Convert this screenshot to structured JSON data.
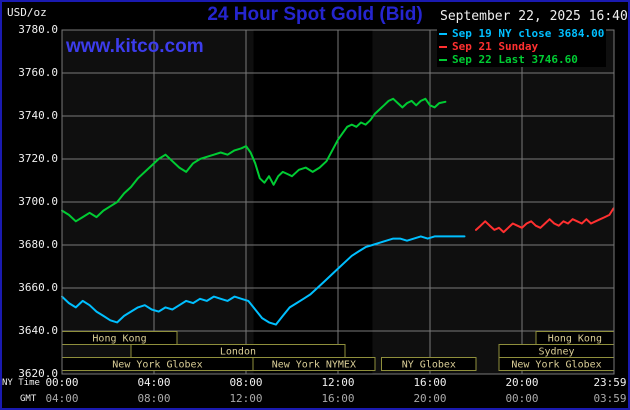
{
  "header": {
    "unit_label": "USD/oz",
    "title": "24 Hour Spot Gold (Bid)",
    "datetime": "September 22, 2025 16:40",
    "watermark": "www.kitco.com"
  },
  "legend": {
    "items": [
      {
        "label": "Sep 19 NY close 3684.00",
        "color": "#00bfff"
      },
      {
        "label": "Sep 21 Sunday",
        "color": "#ff3030"
      },
      {
        "label": "Sep 22 Last 3746.60",
        "color": "#00cc33"
      }
    ]
  },
  "axes": {
    "ny_label": "NY Time",
    "gmt_label": "GMT",
    "tick_hours": [
      0,
      4,
      8,
      12,
      16,
      20,
      24
    ],
    "ny_ticks": [
      "00:00",
      "04:00",
      "08:00",
      "12:00",
      "16:00",
      "20:00",
      "23:59"
    ],
    "gmt_ticks": [
      "04:00",
      "08:00",
      "12:00",
      "16:00",
      "20:00",
      "00:00",
      "03:59"
    ],
    "y_tick_labels": [
      "3780.0",
      "3760.0",
      "3740.0",
      "3720.0",
      "3700.0",
      "3680.0",
      "3660.0",
      "3640.0",
      "3620.0"
    ],
    "y_tick_values": [
      3780,
      3760,
      3740,
      3720,
      3700,
      3680,
      3660,
      3640,
      3620
    ]
  },
  "chart_data": {
    "type": "line",
    "title": "24 Hour Spot Gold (Bid)",
    "xlabel": "NY Time (hours)",
    "ylabel": "USD/oz",
    "xlim": [
      0,
      24
    ],
    "ylim": [
      3620,
      3780
    ],
    "grid": true,
    "legend_position": "top-right",
    "nymex_band": {
      "start": 8.33,
      "end": 13.5
    },
    "series": [
      {
        "name": "Sep 19 NY close",
        "color": "#00bfff",
        "final_value": 3684.0,
        "points": [
          [
            0,
            3656
          ],
          [
            0.3,
            3653
          ],
          [
            0.6,
            3651
          ],
          [
            0.9,
            3654
          ],
          [
            1.2,
            3652
          ],
          [
            1.5,
            3649
          ],
          [
            1.8,
            3647
          ],
          [
            2.1,
            3645
          ],
          [
            2.4,
            3644
          ],
          [
            2.7,
            3647
          ],
          [
            3,
            3649
          ],
          [
            3.3,
            3651
          ],
          [
            3.6,
            3652
          ],
          [
            3.9,
            3650
          ],
          [
            4.2,
            3649
          ],
          [
            4.5,
            3651
          ],
          [
            4.8,
            3650
          ],
          [
            5.1,
            3652
          ],
          [
            5.4,
            3654
          ],
          [
            5.7,
            3653
          ],
          [
            6,
            3655
          ],
          [
            6.3,
            3654
          ],
          [
            6.6,
            3656
          ],
          [
            6.9,
            3655
          ],
          [
            7.2,
            3654
          ],
          [
            7.5,
            3656
          ],
          [
            7.8,
            3655
          ],
          [
            8.1,
            3654
          ],
          [
            8.4,
            3650
          ],
          [
            8.7,
            3646
          ],
          [
            9,
            3644
          ],
          [
            9.3,
            3643
          ],
          [
            9.6,
            3647
          ],
          [
            9.9,
            3651
          ],
          [
            10.2,
            3653
          ],
          [
            10.5,
            3655
          ],
          [
            10.8,
            3657
          ],
          [
            11.1,
            3660
          ],
          [
            11.4,
            3663
          ],
          [
            11.7,
            3666
          ],
          [
            12,
            3669
          ],
          [
            12.3,
            3672
          ],
          [
            12.6,
            3675
          ],
          [
            12.9,
            3677
          ],
          [
            13.2,
            3679
          ],
          [
            13.5,
            3680
          ],
          [
            13.8,
            3681
          ],
          [
            14.1,
            3682
          ],
          [
            14.4,
            3683
          ],
          [
            14.7,
            3683
          ],
          [
            15,
            3682
          ],
          [
            15.3,
            3683
          ],
          [
            15.6,
            3684
          ],
          [
            15.9,
            3683
          ],
          [
            16.2,
            3684
          ],
          [
            16.5,
            3684
          ],
          [
            16.8,
            3684
          ],
          [
            17.1,
            3684
          ],
          [
            17.5,
            3684
          ]
        ]
      },
      {
        "name": "Sep 21 Sunday",
        "color": "#ff3030",
        "points": [
          [
            18,
            3687
          ],
          [
            18.2,
            3689
          ],
          [
            18.4,
            3691
          ],
          [
            18.6,
            3689
          ],
          [
            18.8,
            3687
          ],
          [
            19,
            3688
          ],
          [
            19.2,
            3686
          ],
          [
            19.4,
            3688
          ],
          [
            19.6,
            3690
          ],
          [
            19.8,
            3689
          ],
          [
            20,
            3688
          ],
          [
            20.2,
            3690
          ],
          [
            20.4,
            3691
          ],
          [
            20.6,
            3689
          ],
          [
            20.8,
            3688
          ],
          [
            21,
            3690
          ],
          [
            21.2,
            3692
          ],
          [
            21.4,
            3690
          ],
          [
            21.6,
            3689
          ],
          [
            21.8,
            3691
          ],
          [
            22,
            3690
          ],
          [
            22.2,
            3692
          ],
          [
            22.4,
            3691
          ],
          [
            22.6,
            3690
          ],
          [
            22.8,
            3692
          ],
          [
            23,
            3690
          ],
          [
            23.2,
            3691
          ],
          [
            23.4,
            3692
          ],
          [
            23.6,
            3693
          ],
          [
            23.8,
            3694
          ],
          [
            23.98,
            3697
          ]
        ]
      },
      {
        "name": "Sep 22",
        "color": "#00cc33",
        "last_value": 3746.6,
        "points": [
          [
            0,
            3696
          ],
          [
            0.3,
            3694
          ],
          [
            0.6,
            3691
          ],
          [
            0.9,
            3693
          ],
          [
            1.2,
            3695
          ],
          [
            1.5,
            3693
          ],
          [
            1.8,
            3696
          ],
          [
            2.1,
            3698
          ],
          [
            2.4,
            3700
          ],
          [
            2.7,
            3704
          ],
          [
            3,
            3707
          ],
          [
            3.3,
            3711
          ],
          [
            3.6,
            3714
          ],
          [
            3.9,
            3717
          ],
          [
            4.2,
            3720
          ],
          [
            4.5,
            3722
          ],
          [
            4.8,
            3719
          ],
          [
            5.1,
            3716
          ],
          [
            5.4,
            3714
          ],
          [
            5.7,
            3718
          ],
          [
            6,
            3720
          ],
          [
            6.3,
            3721
          ],
          [
            6.6,
            3722
          ],
          [
            6.9,
            3723
          ],
          [
            7.2,
            3722
          ],
          [
            7.5,
            3724
          ],
          [
            7.8,
            3725
          ],
          [
            8,
            3726
          ],
          [
            8.2,
            3723
          ],
          [
            8.4,
            3718
          ],
          [
            8.6,
            3711
          ],
          [
            8.8,
            3709
          ],
          [
            9,
            3712
          ],
          [
            9.2,
            3708
          ],
          [
            9.4,
            3712
          ],
          [
            9.6,
            3714
          ],
          [
            9.8,
            3713
          ],
          [
            10,
            3712
          ],
          [
            10.3,
            3715
          ],
          [
            10.6,
            3716
          ],
          [
            10.9,
            3714
          ],
          [
            11.2,
            3716
          ],
          [
            11.5,
            3719
          ],
          [
            11.8,
            3725
          ],
          [
            12,
            3729
          ],
          [
            12.2,
            3732
          ],
          [
            12.4,
            3735
          ],
          [
            12.6,
            3736
          ],
          [
            12.8,
            3735
          ],
          [
            13,
            3737
          ],
          [
            13.2,
            3736
          ],
          [
            13.4,
            3738
          ],
          [
            13.6,
            3741
          ],
          [
            13.8,
            3743
          ],
          [
            14,
            3745
          ],
          [
            14.2,
            3747
          ],
          [
            14.4,
            3748
          ],
          [
            14.6,
            3746
          ],
          [
            14.8,
            3744
          ],
          [
            15,
            3746
          ],
          [
            15.2,
            3747
          ],
          [
            15.4,
            3745
          ],
          [
            15.6,
            3747
          ],
          [
            15.8,
            3748
          ],
          [
            16,
            3745
          ],
          [
            16.2,
            3744
          ],
          [
            16.4,
            3746
          ],
          [
            16.67,
            3746.6
          ]
        ]
      }
    ],
    "sessions": [
      {
        "row": 0,
        "label": "Hong Kong",
        "start": 0,
        "end": 5
      },
      {
        "row": 0,
        "label": "Hong Kong",
        "start": 20.6,
        "end": 24
      },
      {
        "row": 1,
        "label": "London",
        "start": 3,
        "end": 12.3
      },
      {
        "row": 1,
        "label": "Sydney",
        "start": 19,
        "end": 24
      },
      {
        "row": 2,
        "label": "New York Globex",
        "start": 0,
        "end": 8.3
      },
      {
        "row": 2,
        "label": "New York NYMEX",
        "start": 8.3,
        "end": 13.6
      },
      {
        "row": 2,
        "label": "NY Globex",
        "start": 13.9,
        "end": 18
      },
      {
        "row": 2,
        "label": "New York Globex",
        "start": 19,
        "end": 24
      }
    ]
  },
  "colors": {
    "page_border": "#1a1ab0",
    "title": "#2525cf",
    "watermark": "#3c3cec",
    "grid": "#787878",
    "plot_bg": "#0f0f0f",
    "band": "#000000",
    "axis_text": "#f0f0f0",
    "gmt_text": "#aaaaaa",
    "session_border": "#8f8f3c",
    "session_fill": "#000000",
    "session_text": "#d9cd96"
  }
}
